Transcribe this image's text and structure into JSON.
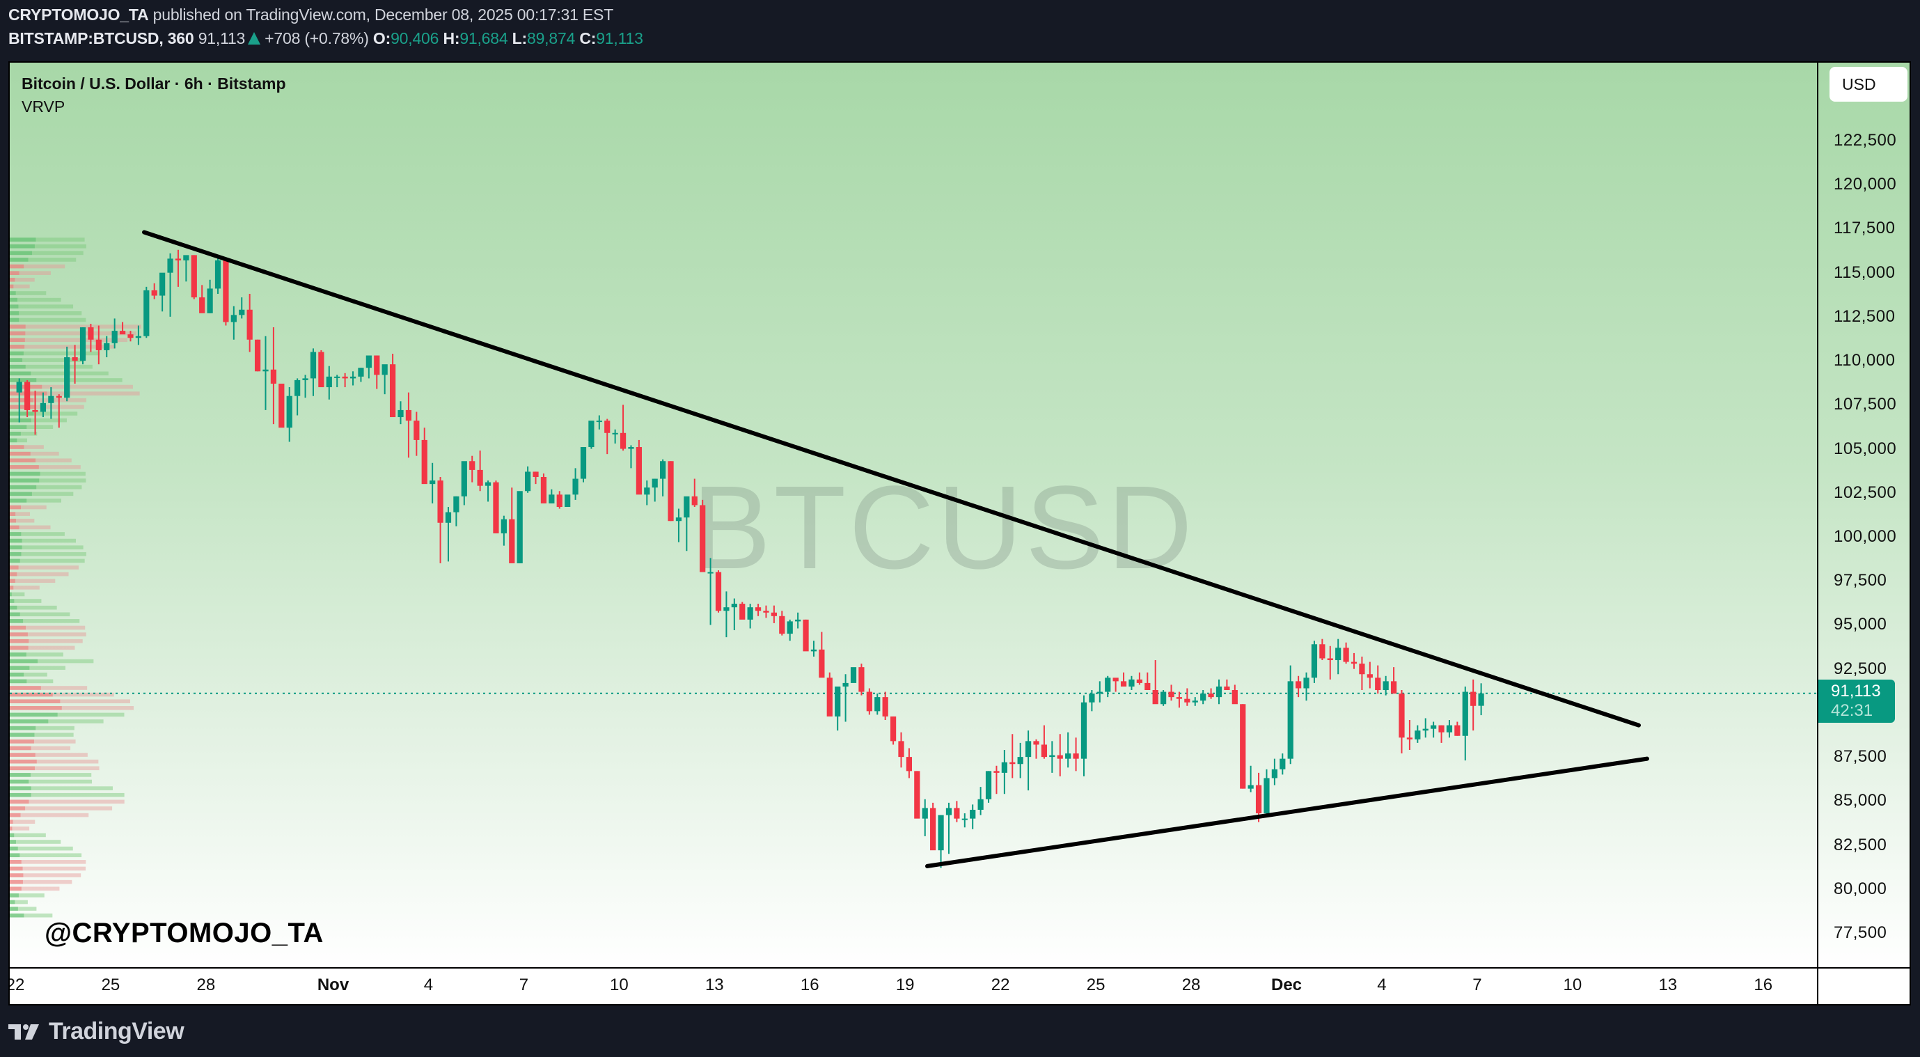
{
  "header": {
    "author": "CRYPTOMOJO_TA",
    "published_text": "published on TradingView.com, December 08, 2025 00:17:31 EST",
    "symbol": "BITSTAMP:BTCUSD, 360",
    "last": "91,113",
    "change": "+708 (+0.78%)",
    "o_label": "O:",
    "open": "90,406",
    "h_label": "H:",
    "high": "91,684",
    "l_label": "L:",
    "low": "89,874",
    "c_label": "C:",
    "close": "91,113"
  },
  "legend": {
    "title": "Bitcoin / U.S. Dollar · 6h · Bitstamp",
    "indicator": "VRVP"
  },
  "watermark": "BTCUSD",
  "handle": "@CRYPTOMOJO_TA",
  "currency_button": "USD",
  "last_price_label": {
    "price": "91,113",
    "countdown": "42:31"
  },
  "footer": {
    "brand": "TradingView"
  },
  "colors": {
    "up": "#089981",
    "down": "#f23645",
    "bg_top": "#a8d8a8",
    "bg_bottom": "#ffffff",
    "trendline": "#000000"
  },
  "chart_data": {
    "type": "candlestick",
    "title": "Bitcoin / U.S. Dollar · 6h · Bitstamp",
    "xlabel": "",
    "ylabel": "USD",
    "ylim": [
      76000,
      124500
    ],
    "y_ticks": [
      "122,500",
      "120,000",
      "117,500",
      "115,000",
      "112,500",
      "110,000",
      "107,500",
      "105,000",
      "102,500",
      "100,000",
      "97,500",
      "95,000",
      "92,500",
      "87,500",
      "85,000",
      "82,500",
      "80,000",
      "77,500"
    ],
    "x_ticks": [
      "22",
      "25",
      "28",
      "Nov",
      "4",
      "7",
      "10",
      "13",
      "16",
      "19",
      "22",
      "25",
      "28",
      "Dec",
      "4",
      "7",
      "10",
      "13",
      "16"
    ],
    "x_tick_bold": [
      "Nov",
      "Dec"
    ],
    "last_price": 91113,
    "candles_per_day": 4,
    "start": "Oct 22 (approx, 6h candles)",
    "ohlc": [
      [
        108200,
        109000,
        106500,
        108800
      ],
      [
        108800,
        108900,
        106800,
        107200
      ],
      [
        107200,
        108300,
        105800,
        107100
      ],
      [
        107100,
        108200,
        106800,
        107600
      ],
      [
        107600,
        108500,
        106700,
        108000
      ],
      [
        108000,
        108100,
        106200,
        107900
      ],
      [
        107900,
        110800,
        107700,
        110200
      ],
      [
        110200,
        110900,
        108700,
        110000
      ],
      [
        110000,
        111900,
        109800,
        111900
      ],
      [
        111900,
        112100,
        110500,
        111200
      ],
      [
        111200,
        112000,
        109800,
        110600
      ],
      [
        110600,
        111400,
        110200,
        111000
      ],
      [
        111000,
        112400,
        110700,
        111700
      ],
      [
        111700,
        112200,
        111600,
        111500
      ],
      [
        111500,
        111700,
        111100,
        111300
      ],
      [
        111300,
        112000,
        110900,
        111400
      ],
      [
        111400,
        114200,
        111300,
        114000
      ],
      [
        114000,
        114400,
        113500,
        113700
      ],
      [
        113700,
        114400,
        112800,
        115000
      ],
      [
        115000,
        116100,
        112500,
        115800
      ],
      [
        115800,
        116300,
        114200,
        115700
      ],
      [
        115700,
        115800,
        114500,
        116000
      ],
      [
        116000,
        116000,
        113500,
        113600
      ],
      [
        113600,
        114300,
        113100,
        112700
      ],
      [
        112700,
        114600,
        112700,
        114100
      ],
      [
        114100,
        116000,
        113800,
        115700
      ],
      [
        115700,
        115700,
        112000,
        112200
      ],
      [
        112200,
        113100,
        111200,
        112600
      ],
      [
        112600,
        113600,
        112400,
        112900
      ],
      [
        112900,
        113800,
        110500,
        111200
      ],
      [
        111200,
        111200,
        109400,
        109400
      ],
      [
        109400,
        111400,
        107200,
        109500
      ],
      [
        109500,
        111900,
        106400,
        108700
      ],
      [
        108700,
        108700,
        106300,
        106200
      ],
      [
        106200,
        108500,
        105400,
        108000
      ],
      [
        108000,
        109000,
        106900,
        108900
      ],
      [
        108900,
        109200,
        107900,
        109000
      ],
      [
        109000,
        110700,
        108000,
        110500
      ],
      [
        110500,
        110600,
        108800,
        108500
      ],
      [
        108500,
        109700,
        107800,
        109100
      ],
      [
        109100,
        109200,
        108500,
        109100
      ],
      [
        109100,
        109300,
        108500,
        109000
      ],
      [
        109000,
        109400,
        108600,
        109100
      ],
      [
        109100,
        109600,
        108800,
        109600
      ],
      [
        109600,
        110000,
        109000,
        110300
      ],
      [
        110300,
        110300,
        108400,
        109200
      ],
      [
        109200,
        109700,
        108100,
        109800
      ],
      [
        109800,
        110400,
        107500,
        106800
      ],
      [
        106800,
        107700,
        106400,
        107200
      ],
      [
        107200,
        108200,
        104500,
        106600
      ],
      [
        106600,
        107100,
        104600,
        105500
      ],
      [
        105500,
        106200,
        103200,
        103000
      ],
      [
        103000,
        104200,
        101900,
        103200
      ],
      [
        103200,
        103400,
        98500,
        100800
      ],
      [
        100800,
        101700,
        98600,
        101400
      ],
      [
        101400,
        102300,
        100600,
        102300
      ],
      [
        102300,
        103800,
        101800,
        104300
      ],
      [
        104300,
        104600,
        103100,
        103800
      ],
      [
        103800,
        104900,
        102600,
        102900
      ],
      [
        102900,
        103200,
        102000,
        103100
      ],
      [
        103100,
        103200,
        100200,
        100200
      ],
      [
        100200,
        101200,
        99500,
        101000
      ],
      [
        101000,
        102800,
        99400,
        98500
      ],
      [
        98500,
        102200,
        98500,
        102600
      ],
      [
        102600,
        104000,
        102500,
        103700
      ],
      [
        103700,
        103700,
        103000,
        103400
      ],
      [
        103400,
        103600,
        102600,
        101900
      ],
      [
        101900,
        102700,
        101900,
        102400
      ],
      [
        102400,
        102600,
        101600,
        101700
      ],
      [
        101700,
        102100,
        101700,
        102400
      ],
      [
        102400,
        103900,
        102100,
        103300
      ],
      [
        103300,
        104600,
        103100,
        105100
      ],
      [
        105100,
        106000,
        105000,
        106600
      ],
      [
        106600,
        106900,
        106100,
        106600
      ],
      [
        106600,
        106700,
        104700,
        105900
      ],
      [
        105900,
        106100,
        105300,
        105900
      ],
      [
        105900,
        107500,
        104900,
        105000
      ],
      [
        105000,
        105200,
        103900,
        105100
      ],
      [
        105100,
        105500,
        103200,
        102400
      ],
      [
        102400,
        103200,
        101800,
        102800
      ],
      [
        102800,
        103300,
        102000,
        103300
      ],
      [
        103300,
        104400,
        102300,
        104300
      ],
      [
        104300,
        104300,
        100900,
        100900
      ],
      [
        100900,
        101600,
        99700,
        101100
      ],
      [
        101100,
        102100,
        99200,
        102300
      ],
      [
        102300,
        103300,
        101700,
        101800
      ],
      [
        101800,
        102100,
        98100,
        98000
      ],
      [
        98000,
        98800,
        95000,
        98000
      ],
      [
        98000,
        98100,
        95700,
        95800
      ],
      [
        95800,
        96900,
        94300,
        96000
      ],
      [
        96000,
        96500,
        94700,
        96200
      ],
      [
        96200,
        96300,
        95400,
        95300
      ],
      [
        95300,
        96200,
        94800,
        96000
      ],
      [
        96000,
        96200,
        95500,
        95800
      ],
      [
        95800,
        96100,
        95400,
        95700
      ],
      [
        95700,
        96100,
        95100,
        95500
      ],
      [
        95500,
        95800,
        94400,
        94500
      ],
      [
        94500,
        95300,
        94100,
        95200
      ],
      [
        95200,
        95700,
        94800,
        95300
      ],
      [
        95300,
        95300,
        93600,
        93500
      ],
      [
        93500,
        94100,
        93200,
        93600
      ],
      [
        93600,
        94600,
        92300,
        92000
      ],
      [
        92000,
        92300,
        90000,
        89800
      ],
      [
        89800,
        90800,
        89000,
        91500
      ],
      [
        91500,
        92200,
        89500,
        91700
      ],
      [
        91700,
        92300,
        91800,
        92600
      ],
      [
        92600,
        92800,
        91000,
        91200
      ],
      [
        91200,
        91400,
        89900,
        90100
      ],
      [
        90100,
        91100,
        89900,
        90900
      ],
      [
        90900,
        91200,
        89600,
        89800
      ],
      [
        89800,
        89800,
        88200,
        88400
      ],
      [
        88400,
        88900,
        86900,
        87500
      ],
      [
        87500,
        88000,
        86300,
        86700
      ],
      [
        86700,
        86700,
        84100,
        84000
      ],
      [
        84000,
        85100,
        83000,
        84600
      ],
      [
        84600,
        84900,
        82300,
        82200
      ],
      [
        82200,
        84200,
        81200,
        84200
      ],
      [
        84200,
        84900,
        82000,
        84600
      ],
      [
        84600,
        85000,
        83800,
        84000
      ],
      [
        84000,
        84300,
        83500,
        84000
      ],
      [
        84000,
        84800,
        83400,
        84500
      ],
      [
        84500,
        85800,
        84200,
        85100
      ],
      [
        85100,
        86700,
        84900,
        86700
      ],
      [
        86700,
        87000,
        85400,
        86600
      ],
      [
        86600,
        87900,
        85400,
        87200
      ],
      [
        87200,
        88800,
        86300,
        87100
      ],
      [
        87100,
        88300,
        86300,
        87500
      ],
      [
        87500,
        89000,
        85600,
        88400
      ],
      [
        88400,
        88500,
        87400,
        88200
      ],
      [
        88200,
        89300,
        87400,
        87500
      ],
      [
        87500,
        88400,
        86600,
        87600
      ],
      [
        87600,
        88800,
        86400,
        87400
      ],
      [
        87400,
        88900,
        86900,
        87700
      ],
      [
        87700,
        88600,
        86700,
        87400
      ],
      [
        87400,
        91000,
        86400,
        90600
      ],
      [
        90600,
        91300,
        90100,
        91100
      ],
      [
        91100,
        91800,
        90600,
        91200
      ],
      [
        91200,
        92100,
        90900,
        92000
      ],
      [
        92000,
        91900,
        91200,
        91800
      ],
      [
        91800,
        92300,
        91600,
        91500
      ],
      [
        91500,
        92100,
        91300,
        91900
      ],
      [
        91900,
        92300,
        91600,
        91700
      ],
      [
        91700,
        92300,
        91400,
        91300
      ],
      [
        91300,
        93000,
        90700,
        90500
      ],
      [
        90500,
        91300,
        90400,
        91200
      ],
      [
        91200,
        91600,
        90700,
        90900
      ],
      [
        90900,
        91200,
        90300,
        90800
      ],
      [
        90800,
        91400,
        90400,
        90600
      ],
      [
        90600,
        90900,
        90400,
        90700
      ],
      [
        90700,
        91300,
        90500,
        91100
      ],
      [
        91100,
        91400,
        90800,
        90900
      ],
      [
        90900,
        91900,
        90500,
        91500
      ],
      [
        91500,
        91900,
        91300,
        91300
      ],
      [
        91300,
        91600,
        90900,
        90500
      ],
      [
        90500,
        90500,
        85700,
        85700
      ],
      [
        85700,
        87000,
        85500,
        85900
      ],
      [
        85900,
        86600,
        83800,
        84300
      ],
      [
        84300,
        86800,
        84200,
        86300
      ],
      [
        86300,
        87400,
        85900,
        86800
      ],
      [
        86800,
        87700,
        86500,
        87400
      ],
      [
        87400,
        92700,
        87100,
        91800
      ],
      [
        91800,
        92100,
        90900,
        91400
      ],
      [
        91400,
        92300,
        90700,
        92000
      ],
      [
        92000,
        94100,
        91700,
        93900
      ],
      [
        93900,
        94200,
        93000,
        93100
      ],
      [
        93100,
        93800,
        91900,
        93000
      ],
      [
        93000,
        94200,
        92200,
        93700
      ],
      [
        93700,
        94000,
        92800,
        92900
      ],
      [
        92900,
        93400,
        92500,
        92800
      ],
      [
        92800,
        93200,
        91300,
        92200
      ],
      [
        92200,
        92900,
        91400,
        92000
      ],
      [
        92000,
        92700,
        91100,
        91300
      ],
      [
        91300,
        92100,
        91000,
        91800
      ],
      [
        91800,
        92600,
        91100,
        91100
      ],
      [
        91100,
        91300,
        87700,
        88600
      ],
      [
        88600,
        89600,
        87900,
        88500
      ],
      [
        88500,
        89300,
        88300,
        89000
      ],
      [
        89000,
        89700,
        88600,
        89100
      ],
      [
        89100,
        89500,
        88600,
        89300
      ],
      [
        89300,
        89300,
        88300,
        88900
      ],
      [
        88900,
        89600,
        88600,
        89300
      ],
      [
        89300,
        89500,
        88700,
        88700
      ],
      [
        88700,
        91500,
        87300,
        91200
      ],
      [
        91200,
        91900,
        89000,
        90400
      ],
      [
        90406,
        91684,
        89874,
        91113
      ]
    ],
    "trendlines": [
      {
        "name": "descending-resistance",
        "from": {
          "x": 193,
          "price": 117300
        },
        "to": {
          "x": 2340,
          "price": 89300
        }
      },
      {
        "name": "ascending-support",
        "from": {
          "x": 1318,
          "price": 81300
        },
        "to": {
          "x": 2352,
          "price": 87400
        }
      }
    ]
  }
}
